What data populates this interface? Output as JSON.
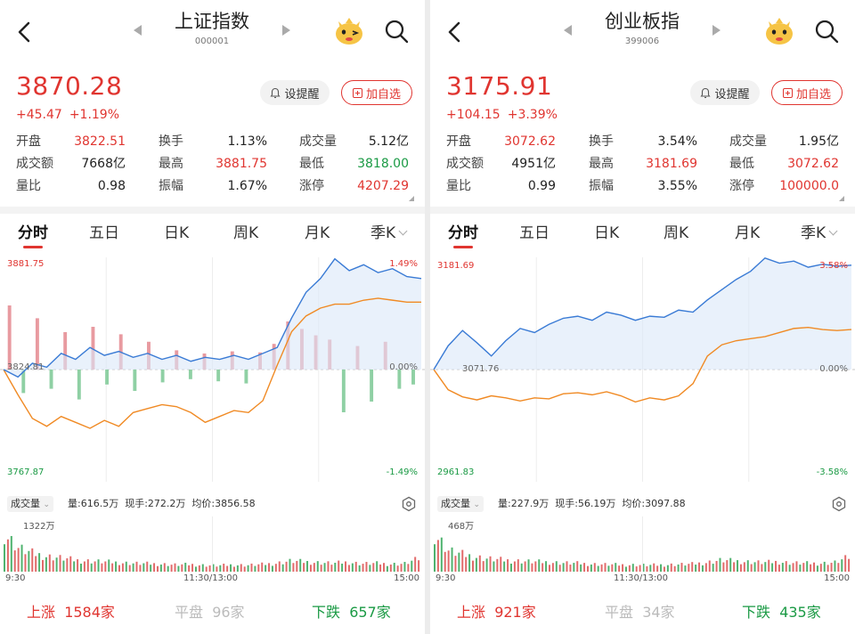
{
  "panels": [
    {
      "id": "left",
      "title": "上证指数",
      "code": "000001",
      "price": "3870.28",
      "change_abs": "+45.47",
      "change_pct": "+1.19%",
      "remind_label": "设提醒",
      "add_label": "加自选",
      "stats": [
        [
          {
            "label": "开盘",
            "value": "3822.51",
            "tone": "up"
          },
          {
            "label": "换手",
            "value": "1.13%",
            "tone": "neutral"
          },
          {
            "label": "成交量",
            "value": "5.12亿",
            "tone": "neutral"
          }
        ],
        [
          {
            "label": "成交额",
            "value": "7668亿",
            "tone": "neutral"
          },
          {
            "label": "最高",
            "value": "3881.75",
            "tone": "up"
          },
          {
            "label": "最低",
            "value": "3818.00",
            "tone": "down"
          }
        ],
        [
          {
            "label": "量比",
            "value": "0.98",
            "tone": "neutral"
          },
          {
            "label": "振幅",
            "value": "1.67%",
            "tone": "neutral"
          },
          {
            "label": "涨停",
            "value": "4207.29",
            "tone": "up"
          }
        ]
      ],
      "tabs": [
        "分时",
        "五日",
        "日K",
        "周K",
        "月K",
        "季K"
      ],
      "chart": {
        "high_label": "3881.75",
        "mid_label": "3824.81",
        "low_label": "3767.87",
        "high_pct": "1.49%",
        "zero_pct": "0.00%",
        "low_pct": "-1.49%"
      },
      "volume": {
        "tag": "成交量",
        "amount": "量:616.5万",
        "current": "现手:272.2万",
        "avg": "均价:3856.58",
        "peak": "1322万"
      },
      "times": [
        "9:30",
        "11:30/13:00",
        "15:00"
      ],
      "breadth": {
        "up_label": "上涨",
        "up_value": "1584家",
        "flat_label": "平盘",
        "flat_value": "96家",
        "down_label": "下跌",
        "down_value": "657家"
      }
    },
    {
      "id": "right",
      "title": "创业板指",
      "code": "399006",
      "price": "3175.91",
      "change_abs": "+104.15",
      "change_pct": "+3.39%",
      "remind_label": "设提醒",
      "add_label": "加自选",
      "stats": [
        [
          {
            "label": "开盘",
            "value": "3072.62",
            "tone": "up"
          },
          {
            "label": "换手",
            "value": "3.54%",
            "tone": "neutral"
          },
          {
            "label": "成交量",
            "value": "1.95亿",
            "tone": "neutral"
          }
        ],
        [
          {
            "label": "成交额",
            "value": "4951亿",
            "tone": "neutral"
          },
          {
            "label": "最高",
            "value": "3181.69",
            "tone": "up"
          },
          {
            "label": "最低",
            "value": "3072.62",
            "tone": "up"
          }
        ],
        [
          {
            "label": "量比",
            "value": "0.99",
            "tone": "neutral"
          },
          {
            "label": "振幅",
            "value": "3.55%",
            "tone": "neutral"
          },
          {
            "label": "涨停",
            "value": "100000.0",
            "tone": "up"
          }
        ]
      ],
      "tabs": [
        "分时",
        "五日",
        "日K",
        "周K",
        "月K",
        "季K"
      ],
      "chart": {
        "high_label": "3181.69",
        "mid_label": "3071.76",
        "low_label": "2961.83",
        "high_pct": "3.58%",
        "zero_pct": "0.00%",
        "low_pct": "-3.58%"
      },
      "volume": {
        "tag": "成交量",
        "amount": "量:227.9万",
        "current": "现手:56.19万",
        "avg": "均价:3097.88",
        "peak": "468万"
      },
      "times": [
        "9:30",
        "11:30/13:00",
        "15:00"
      ],
      "breadth": {
        "up_label": "上涨",
        "up_value": "921家",
        "flat_label": "平盘",
        "flat_value": "34家",
        "down_label": "下跌",
        "down_value": "435家"
      }
    }
  ],
  "chart_data": [
    {
      "type": "line",
      "series": [
        {
          "values": [
            3824.8,
            3821,
            3828,
            3826,
            3833,
            3830,
            3836,
            3832,
            3834,
            3831,
            3833,
            3830,
            3832,
            3829,
            3831,
            3830,
            3832,
            3830,
            3833,
            3836,
            3851,
            3864,
            3871,
            3881,
            3875,
            3878,
            3874,
            3876,
            3872,
            3871
          ]
        },
        {
          "values": [
            3824.8,
            3812,
            3800,
            3796,
            3801,
            3798,
            3795,
            3799,
            3796,
            3803,
            3805,
            3807,
            3806,
            3803,
            3798,
            3801,
            3804,
            3803,
            3809,
            3827,
            3844,
            3852,
            3856,
            3858,
            3858,
            3860,
            3861,
            3860,
            3859,
            3859
          ]
        }
      ],
      "colors": {
        "price": "#3a7bd5",
        "avg": "#f08a24",
        "up": "#e03530",
        "down": "#1a9a44"
      },
      "ylim": [
        3767.87,
        3881.75
      ],
      "volume_values": [
        60,
        22,
        48,
        18,
        35,
        28,
        40,
        14,
        33,
        20,
        26,
        12,
        18,
        9,
        15,
        11,
        17,
        13,
        16,
        24,
        45,
        38,
        32,
        28,
        40,
        22,
        30,
        26,
        18,
        14
      ],
      "volume_up": [
        true,
        false,
        true,
        false,
        true,
        false,
        true,
        false,
        true,
        false,
        true,
        false,
        true,
        false,
        true,
        false,
        true,
        false,
        true,
        true,
        true,
        true,
        true,
        true,
        false,
        true,
        false,
        true,
        false,
        false
      ],
      "trading_volume_values": [
        100,
        62,
        48,
        40,
        36,
        30,
        28,
        26,
        24,
        22,
        21,
        20,
        18,
        19,
        17,
        16,
        18,
        17,
        19,
        22,
        28,
        26,
        24,
        22,
        25,
        21,
        22,
        20,
        21,
        34
      ]
    },
    {
      "type": "line",
      "series": [
        {
          "values": [
            3071.8,
            3095,
            3110,
            3098,
            3085,
            3100,
            3112,
            3108,
            3116,
            3122,
            3124,
            3120,
            3128,
            3125,
            3120,
            3124,
            3123,
            3130,
            3128,
            3140,
            3150,
            3160,
            3168,
            3181,
            3176,
            3178,
            3172,
            3175,
            3173,
            3174
          ]
        },
        {
          "values": [
            3071.8,
            3052,
            3045,
            3042,
            3046,
            3044,
            3041,
            3044,
            3043,
            3048,
            3049,
            3047,
            3050,
            3046,
            3040,
            3044,
            3042,
            3046,
            3058,
            3085,
            3096,
            3100,
            3102,
            3104,
            3108,
            3112,
            3113,
            3111,
            3110,
            3111
          ]
        }
      ],
      "colors": {
        "price": "#3a7bd5",
        "avg": "#f08a24",
        "up": "#e03530",
        "down": "#1a9a44"
      },
      "ylim": [
        2961.83,
        3181.69
      ],
      "volume_values": [],
      "volume_up": [],
      "trading_volume_values": [
        100,
        55,
        45,
        38,
        33,
        30,
        28,
        26,
        25,
        23,
        22,
        20,
        19,
        18,
        18,
        17,
        18,
        19,
        20,
        24,
        30,
        28,
        26,
        24,
        26,
        23,
        22,
        22,
        24,
        38
      ]
    }
  ]
}
